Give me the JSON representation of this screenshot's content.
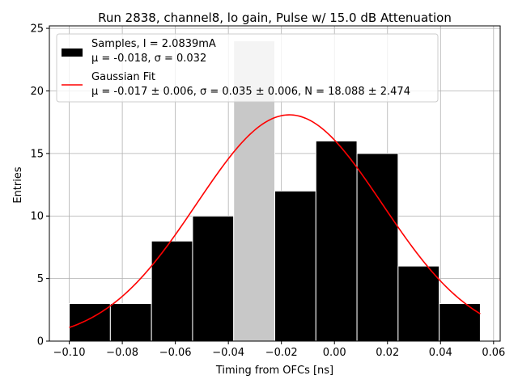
{
  "chart_data": {
    "type": "bar",
    "title": "Run 2838, channel8, lo gain, Pulse w/ 15.0 dB Attenuation",
    "xlabel": "Timing from OFCs [ns]",
    "ylabel": "Entries",
    "xlim": [
      -0.1075,
      0.0625
    ],
    "ylim": [
      0,
      25.2
    ],
    "xticks": [
      -0.1,
      -0.08,
      -0.06,
      -0.04,
      -0.02,
      0.0,
      0.02,
      0.04,
      0.06
    ],
    "xtick_labels": [
      "−0.10",
      "−0.08",
      "−0.06",
      "−0.04",
      "−0.02",
      "0.00",
      "0.02",
      "0.04",
      "0.06"
    ],
    "yticks": [
      0,
      5,
      10,
      15,
      20,
      25
    ],
    "ytick_labels": [
      "0",
      "5",
      "10",
      "15",
      "20",
      "25"
    ],
    "grid": true,
    "legend_position": "top-left",
    "bin_edges": [
      -0.1,
      -0.0845,
      -0.069,
      -0.0535,
      -0.038,
      -0.0225,
      -0.007,
      0.0085,
      0.024,
      0.0395,
      0.055
    ],
    "counts": [
      3,
      3,
      8,
      10,
      24,
      12,
      16,
      15,
      6,
      3
    ],
    "highlight_bin": 4,
    "fit": {
      "mu": -0.017,
      "sigma": 0.035,
      "N": 18.088,
      "x_range": [
        -0.1,
        0.055
      ]
    },
    "legend": {
      "samples_line1": "Samples, I = 2.0839mA",
      "samples_line2": "μ = -0.018, σ = 0.032",
      "fit_line1": "Gaussian Fit",
      "fit_line2": "μ = -0.017 ± 0.006, σ = 0.035 ± 0.006, N = 18.088 ± 2.474"
    },
    "colors": {
      "bars": "#000000",
      "highlight_bar": "#c8c8c8",
      "bar_edge": "#ffffff",
      "fit": "#ff0000",
      "grid": "#b0b0b0"
    }
  }
}
